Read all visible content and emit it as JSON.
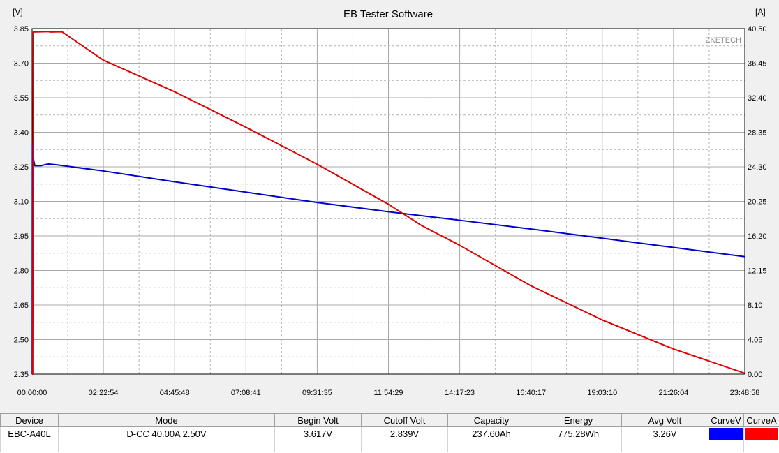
{
  "chart_data": {
    "type": "line",
    "title": "EB Tester Software",
    "watermark": "ZKETECH",
    "y_left_unit": "[V]",
    "y_right_unit": "[A]",
    "y_left_ticks": [
      "3.85",
      "3.70",
      "3.55",
      "3.40",
      "3.25",
      "3.10",
      "2.95",
      "2.80",
      "2.65",
      "2.50",
      "2.35"
    ],
    "y_right_ticks": [
      "40.50",
      "36.45",
      "32.40",
      "28.35",
      "24.30",
      "20.25",
      "16.20",
      "12.15",
      "8.10",
      "4.05",
      "0.00"
    ],
    "x_ticks": [
      "00:00:00",
      "02:22:54",
      "04:45:48",
      "07:08:41",
      "09:31:35",
      "11:54:29",
      "14:17:23",
      "16:40:17",
      "19:03:10",
      "21:26:04",
      "23:48:58"
    ],
    "x_unit": "hours",
    "x_range": [
      0,
      23.816
    ],
    "y_left_range": [
      2.35,
      3.85
    ],
    "y_right_range": [
      0,
      40.5
    ],
    "grid": true,
    "series": [
      {
        "name": "CurveV",
        "axis": "left",
        "color": "#0000c8",
        "points": [
          [
            0,
            2.35
          ],
          [
            0.005,
            2.35
          ],
          [
            0.01,
            3.35
          ],
          [
            0.05,
            3.28
          ],
          [
            0.09,
            3.255
          ],
          [
            0.3,
            3.255
          ],
          [
            0.45,
            3.26
          ],
          [
            0.55,
            3.262
          ],
          [
            0.8,
            3.259
          ],
          [
            2.38,
            3.232
          ],
          [
            4.76,
            3.185
          ],
          [
            7.14,
            3.14
          ],
          [
            9.53,
            3.095
          ],
          [
            11.91,
            3.055
          ],
          [
            14.29,
            3.018
          ],
          [
            16.67,
            2.98
          ],
          [
            19.05,
            2.94
          ],
          [
            21.43,
            2.9
          ],
          [
            23.82,
            2.86
          ]
        ]
      },
      {
        "name": "CurveA",
        "axis": "right",
        "color": "#e00000",
        "points": [
          [
            0,
            0
          ],
          [
            0.02,
            0
          ],
          [
            0.04,
            40.1
          ],
          [
            0.55,
            40.15
          ],
          [
            0.6,
            40.1
          ],
          [
            1.0,
            40.13
          ],
          [
            2.38,
            36.8
          ],
          [
            4.76,
            33.1
          ],
          [
            7.14,
            28.95
          ],
          [
            9.53,
            24.6
          ],
          [
            11.91,
            19.9
          ],
          [
            13.0,
            17.45
          ],
          [
            14.29,
            15.1
          ],
          [
            16.67,
            10.35
          ],
          [
            19.05,
            6.35
          ],
          [
            21.43,
            2.95
          ],
          [
            23.82,
            0.1
          ]
        ]
      }
    ]
  },
  "stats": {
    "headers": {
      "device": "Device",
      "mode": "Mode",
      "begin_volt": "Begin Volt",
      "cutoff_volt": "Cutoff Volt",
      "capacity": "Capacity",
      "energy": "Energy",
      "avg_volt": "Avg Volt",
      "curve_v": "CurveV",
      "curve_a": "CurveA"
    },
    "row": {
      "device": "EBC-A40L",
      "mode": "D-CC  40.00A  2.50V",
      "begin_volt": "3.617V",
      "cutoff_volt": "2.839V",
      "capacity": "237.60Ah",
      "energy": "775.28Wh",
      "avg_volt": "3.26V",
      "curve_v_color": "#0000ff",
      "curve_a_color": "#ff0000"
    }
  }
}
